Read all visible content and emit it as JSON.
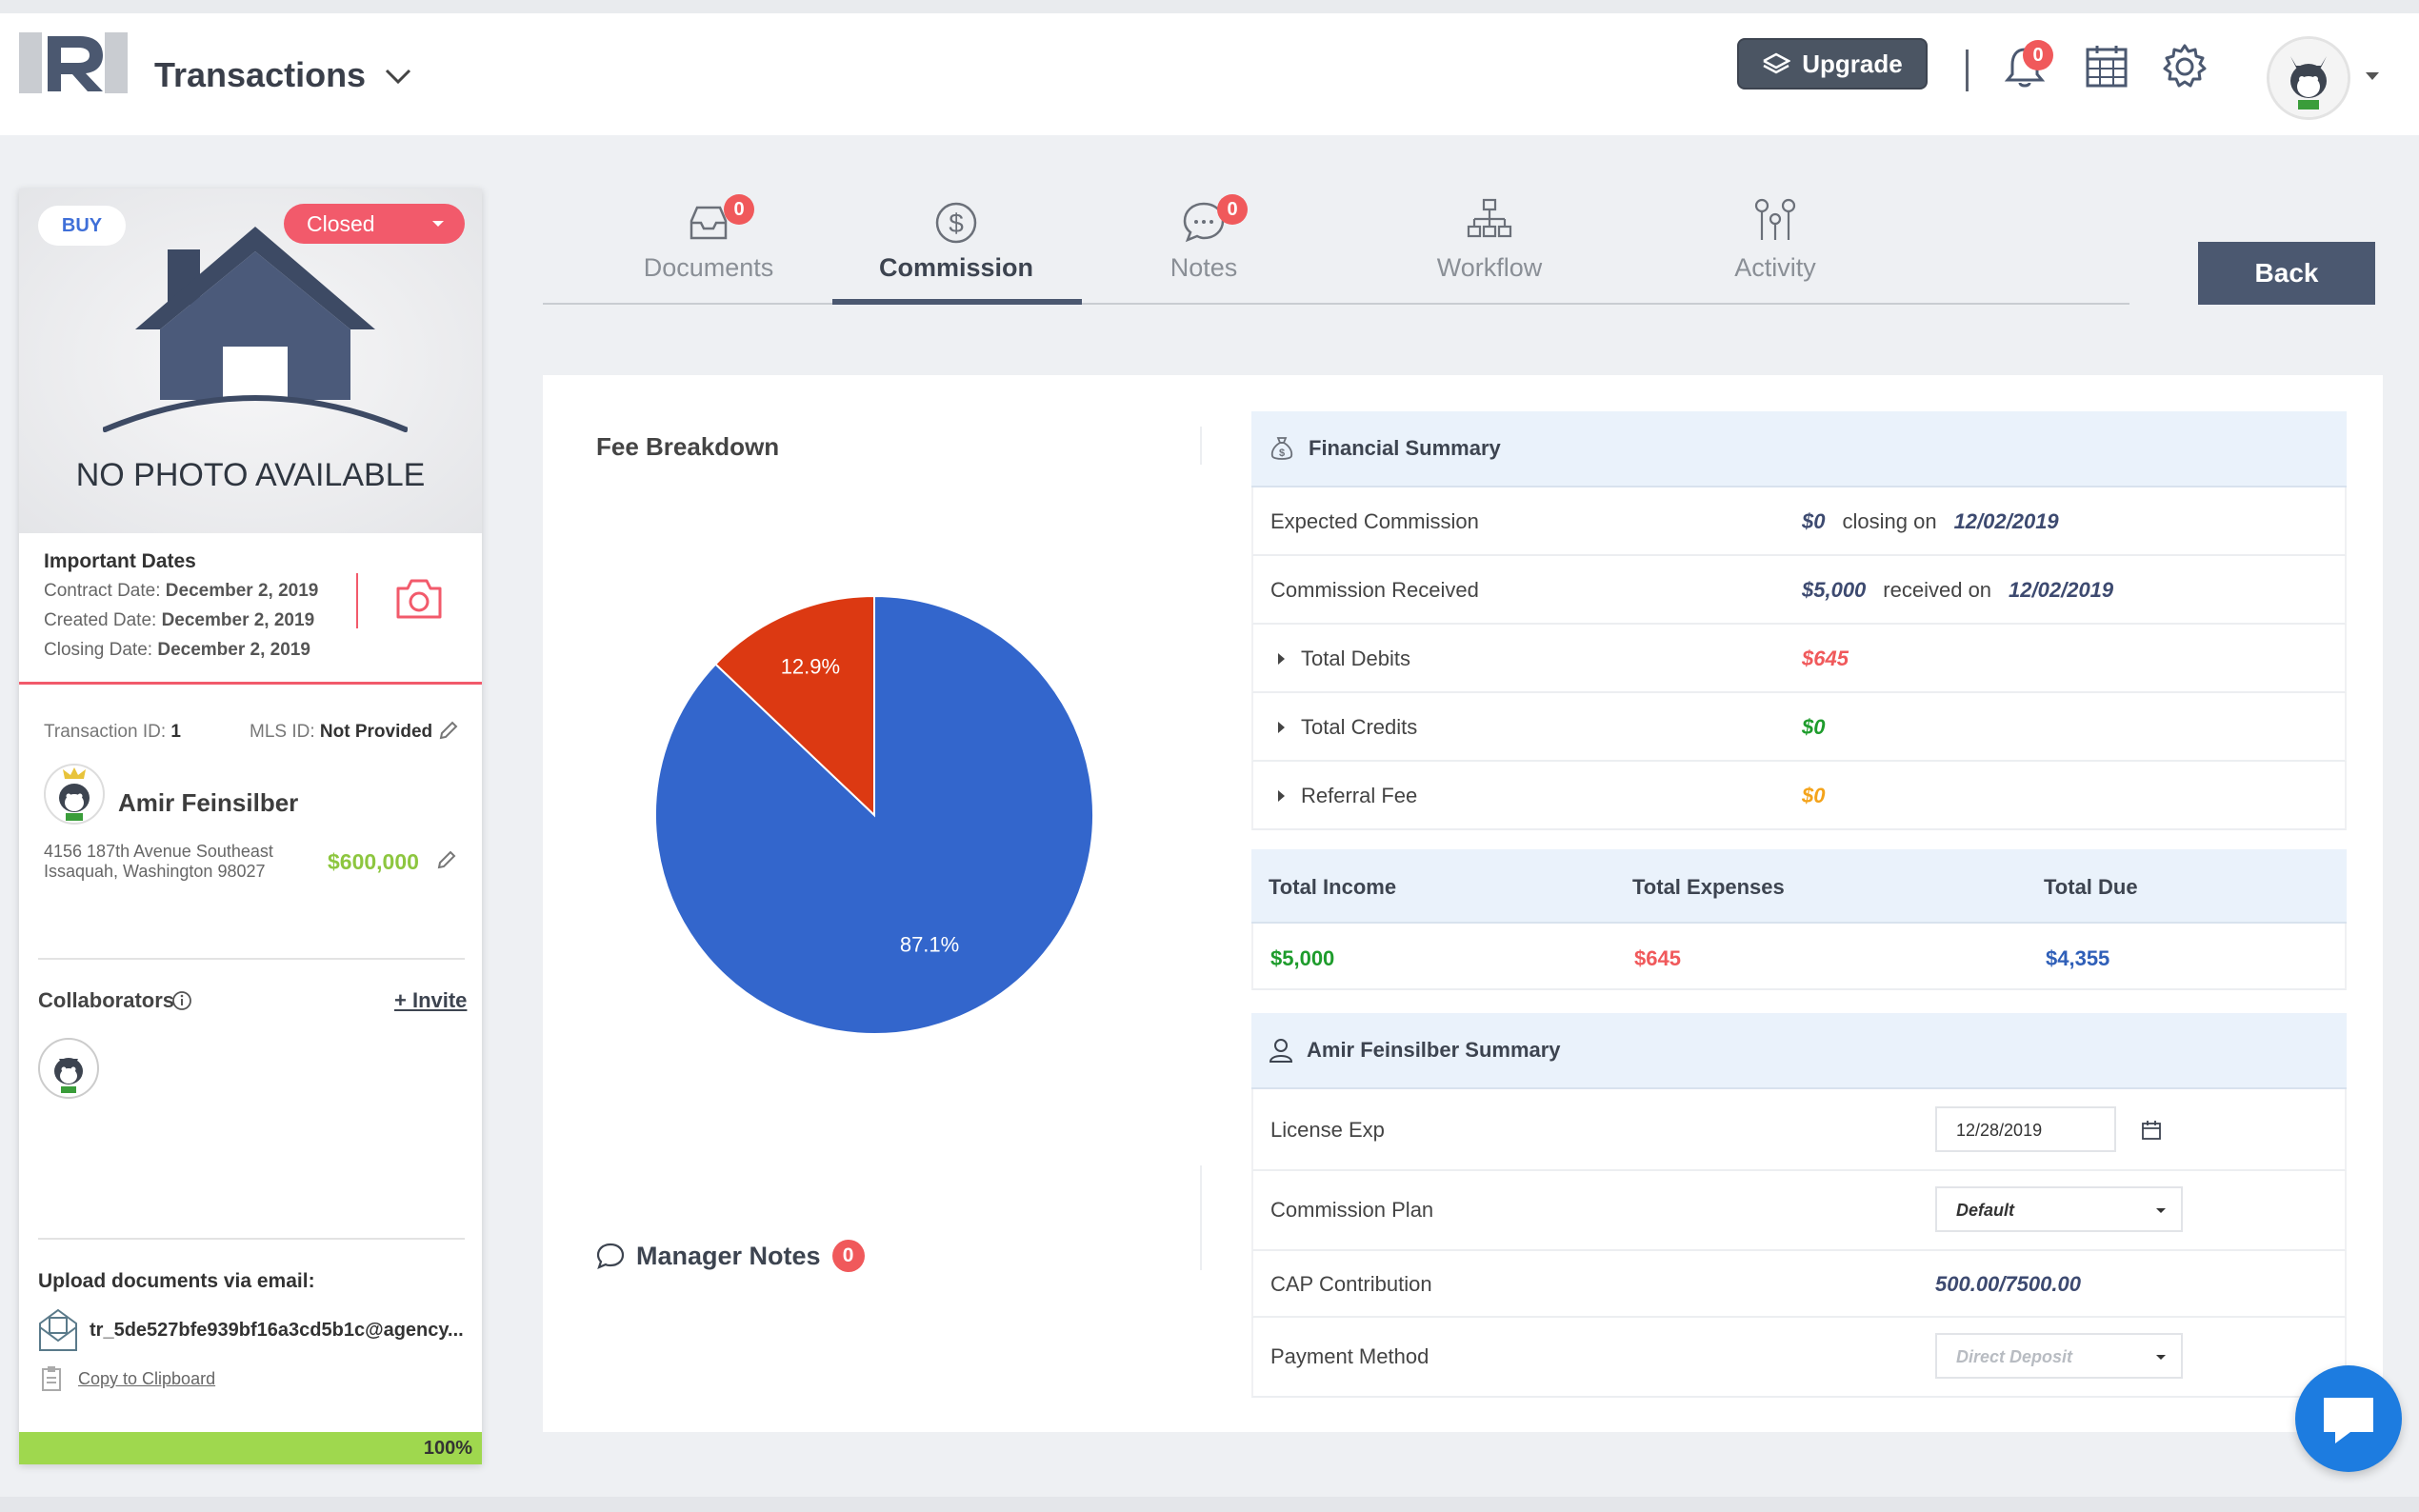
{
  "header": {
    "title": "Transactions",
    "upgrade_label": "Upgrade",
    "notification_count": "0",
    "icons": [
      "logo-icon",
      "chevron-down-icon",
      "layers-icon",
      "bell-icon",
      "calendar-icon",
      "gear-icon",
      "avatar-icon"
    ]
  },
  "listing": {
    "type_badge": "BUY",
    "status": "Closed",
    "no_photo_text": "NO PHOTO AVAILABLE",
    "important_dates_title": "Important Dates",
    "contract_date_label": "Contract Date:",
    "contract_date": "December 2, 2019",
    "created_date_label": "Created Date:",
    "created_date": "December 2, 2019",
    "closing_date_label": "Closing Date:",
    "closing_date": "December 2, 2019",
    "transaction_id_label": "Transaction ID:",
    "transaction_id": "1",
    "mls_id_label": "MLS ID:",
    "mls_id": "Not Provided",
    "agent_name": "Amir Feinsilber",
    "address_line1": "4156 187th Avenue Southeast",
    "address_line2": "Issaquah, Washington 98027",
    "price": "$600,000",
    "collaborators_label": "Collaborators",
    "invite_label": "+ Invite",
    "upload_label": "Upload documents via email:",
    "upload_email": "tr_5de527bfe939bf16a3cd5b1c@agency...",
    "copy_label": "Copy to Clipboard",
    "progress_value": 100,
    "progress_label": "100%"
  },
  "tabs": [
    {
      "label": "Documents",
      "badge": "0",
      "icon": "inbox-icon"
    },
    {
      "label": "Commission",
      "badge": "",
      "icon": "dollar-circle-icon",
      "active": true
    },
    {
      "label": "Notes",
      "badge": "0",
      "icon": "chat-bubble-icon"
    },
    {
      "label": "Workflow",
      "badge": "",
      "icon": "org-chart-icon"
    },
    {
      "label": "Activity",
      "badge": "",
      "icon": "pins-icon"
    }
  ],
  "back_label": "Back",
  "fee_breakdown": {
    "title": "Fee Breakdown"
  },
  "chart_data": {
    "type": "pie",
    "title": "",
    "slices": [
      {
        "label": "87.1%",
        "value": 87.1,
        "color": "#3366cc"
      },
      {
        "label": "12.9%",
        "value": 12.9,
        "color": "#dc3912"
      }
    ]
  },
  "manager_notes": {
    "label": "Manager Notes",
    "count": "0"
  },
  "financial_summary": {
    "title": "Financial Summary",
    "expected_commission_label": "Expected Commission",
    "expected_commission": "$0",
    "closing_on_label": "closing on",
    "closing_on_date": "12/02/2019",
    "commission_received_label": "Commission Received",
    "commission_received": "$5,000",
    "received_on_label": "received on",
    "received_on_date": "12/02/2019",
    "total_debits_label": "Total Debits",
    "total_debits": "$645",
    "total_credits_label": "Total Credits",
    "total_credits": "$0",
    "referral_fee_label": "Referral Fee",
    "referral_fee": "$0"
  },
  "totals": {
    "income_label": "Total Income",
    "expenses_label": "Total Expenses",
    "due_label": "Total Due",
    "income": "$5,000",
    "expenses": "$645",
    "due": "$4,355"
  },
  "agent_summary": {
    "title": "Amir Feinsilber Summary",
    "license_exp_label": "License Exp",
    "license_exp": "12/28/2019",
    "commission_plan_label": "Commission Plan",
    "commission_plan": "Default",
    "cap_label": "CAP Contribution",
    "cap_value": "500.00/7500.00",
    "payment_method_label": "Payment Method",
    "payment_method": "Direct Deposit"
  },
  "colors": {
    "accent": "#4b5870",
    "danger": "#f0595b",
    "success": "#1e9c2c",
    "warning": "#f4a31a",
    "progress": "#9fd84e"
  }
}
